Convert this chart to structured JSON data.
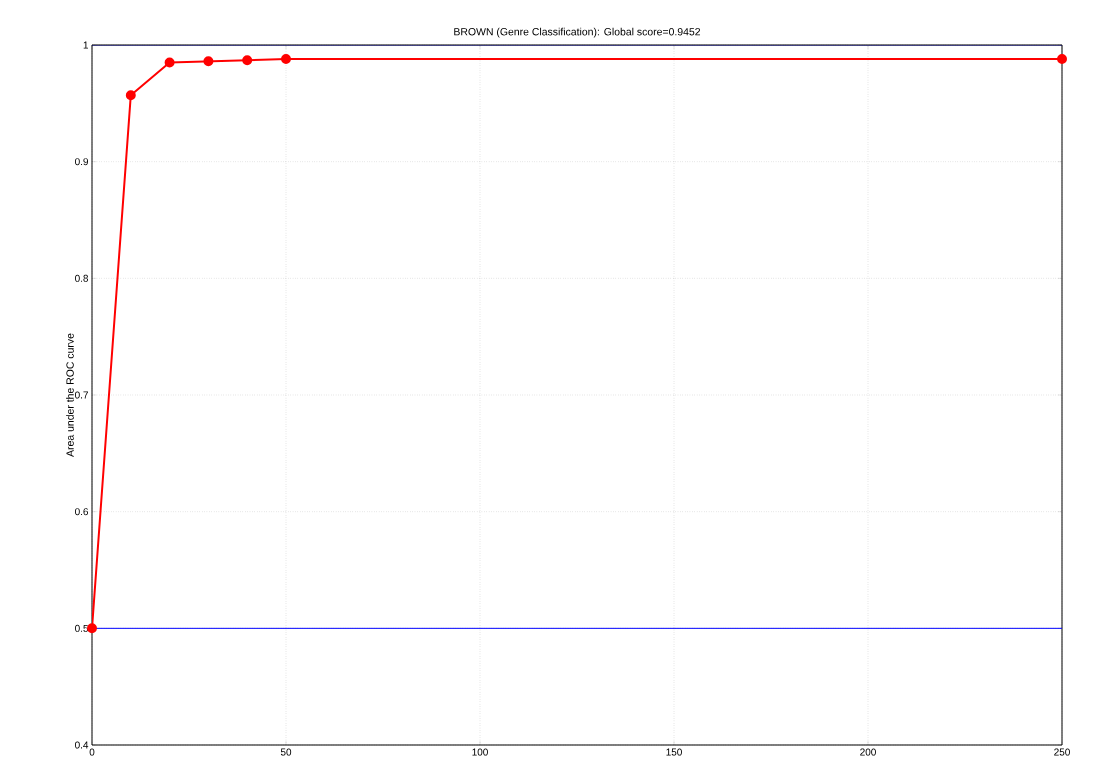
{
  "chart_data": {
    "type": "line",
    "title": "BROWN (Genre Classification): Global score=0.9452",
    "ylabel": "Area under the ROC curve",
    "x": [
      0,
      10,
      20,
      30,
      40,
      50,
      250
    ],
    "series": [
      {
        "color": "#ff0000",
        "values": [
          0.5,
          0.957,
          0.985,
          0.986,
          0.987,
          0.988,
          0.988
        ],
        "marker": "circle"
      }
    ],
    "ref_lines": [
      {
        "axis": "y",
        "value": 1.0,
        "color": "#000080"
      },
      {
        "axis": "y",
        "value": 0.5,
        "color": "#0000ff"
      }
    ],
    "xlim": [
      0,
      250
    ],
    "ylim": [
      0.4,
      1.0
    ],
    "xticks": [
      0,
      50,
      100,
      150,
      200,
      250
    ],
    "yticks": [
      0.4,
      0.5,
      0.6,
      0.7,
      0.8,
      0.9,
      1
    ],
    "grid": true,
    "line_style": "solid"
  }
}
